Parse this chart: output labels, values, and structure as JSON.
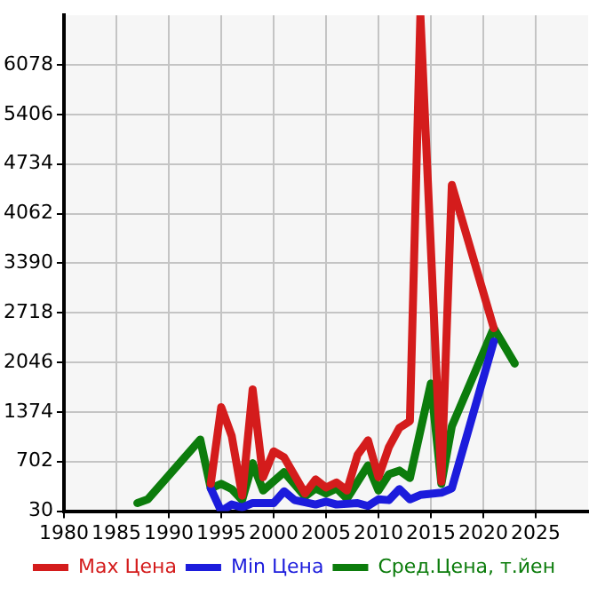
{
  "chart_data": {
    "type": "line",
    "xlim": [
      1980,
      2030
    ],
    "xticks": [
      1980,
      1985,
      1990,
      1995,
      2000,
      2005,
      2010,
      2015,
      2020,
      2025
    ],
    "ylim": [
      30,
      6750
    ],
    "yticks": [
      30,
      702,
      1374,
      2046,
      2718,
      3390,
      4062,
      4734,
      5406,
      6078
    ],
    "grid": true,
    "legend": "bottom",
    "marker": "none",
    "line_style": "solid",
    "series": [
      {
        "name": "Max Цена",
        "color": "#d41c1c",
        "x": [
          1994,
          1995,
          1996,
          1997,
          1998,
          1999,
          2000,
          2001,
          2003,
          2004,
          2005,
          2006,
          2007,
          2008,
          2009,
          2010,
          2011,
          2012,
          2013,
          2014,
          2016,
          2017,
          2021
        ],
        "values": [
          400,
          1440,
          1050,
          240,
          1680,
          490,
          840,
          760,
          270,
          460,
          350,
          420,
          310,
          790,
          990,
          490,
          900,
          1160,
          1250,
          6750,
          430,
          4450,
          2510
        ]
      },
      {
        "name": "Min Цена",
        "color": "#1c1cdc",
        "x": [
          1994,
          1995,
          1996,
          1997,
          1998,
          2000,
          2001,
          2002,
          2004,
          2005,
          2006,
          2008,
          2009,
          2010,
          2011,
          2012,
          2013,
          2014,
          2016,
          2017,
          2021
        ],
        "values": [
          340,
          30,
          120,
          80,
          140,
          140,
          300,
          180,
          120,
          160,
          120,
          140,
          100,
          190,
          180,
          330,
          190,
          250,
          280,
          340,
          2330
        ]
      },
      {
        "name": "Сред.Цена, т.йен",
        "color": "#0c7c0c",
        "x": [
          1987,
          1988,
          1993,
          1994,
          1995,
          1996,
          1997,
          1998,
          1999,
          2001,
          2003,
          2004,
          2005,
          2006,
          2007,
          2009,
          2010,
          2011,
          2012,
          2013,
          2015,
          2016,
          2017,
          2021,
          2023
        ],
        "values": [
          140,
          190,
          1000,
          340,
          400,
          330,
          180,
          680,
          310,
          560,
          230,
          340,
          270,
          340,
          200,
          650,
          310,
          530,
          580,
          480,
          1760,
          400,
          1180,
          2510,
          2030
        ]
      }
    ]
  }
}
